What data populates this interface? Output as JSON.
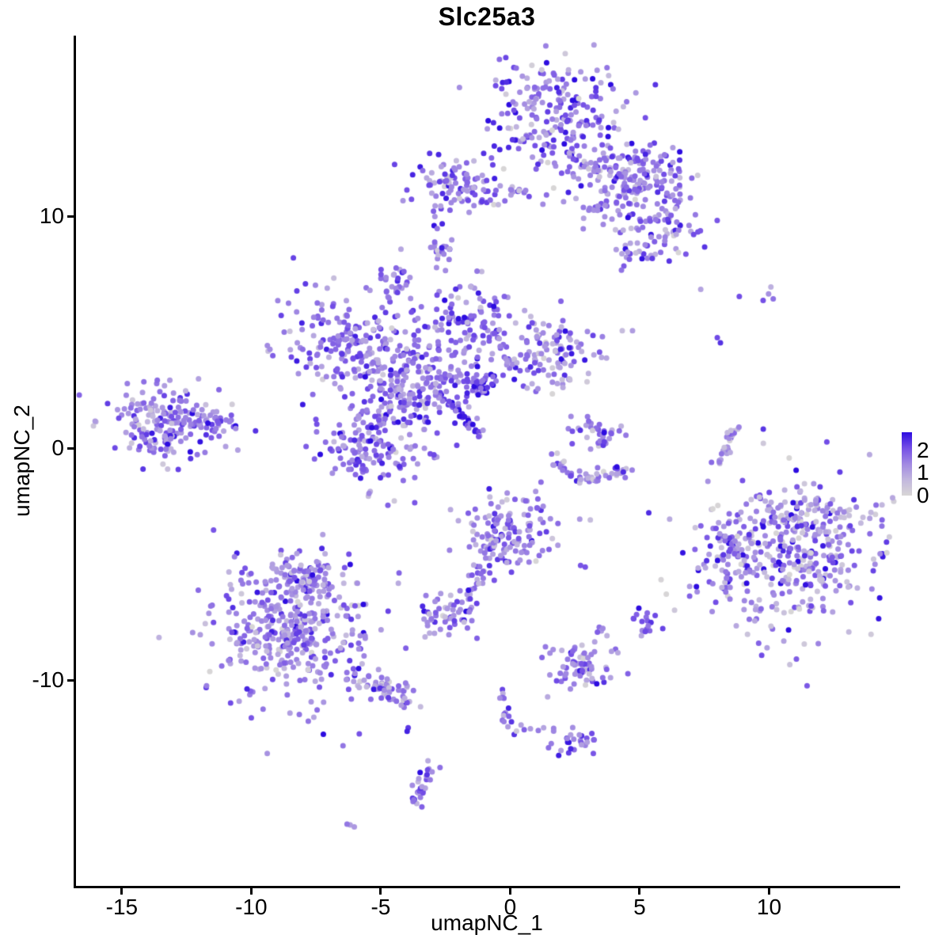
{
  "chart_data": {
    "type": "scatter",
    "title": "Slc25a3",
    "xlabel": "umapNC_1",
    "ylabel": "umapNC_2",
    "xlim": [
      -16.8,
      15.0
    ],
    "ylim": [
      -18.9,
      17.8
    ],
    "x_ticks": [
      -15,
      -10,
      -5,
      0,
      5,
      10
    ],
    "y_ticks": [
      10,
      0,
      -10
    ],
    "grid": false,
    "point_radius_px": 3.5,
    "legend": {
      "position": "right",
      "ticks": [
        2,
        1,
        0
      ],
      "bar_max": 2.8
    },
    "colorscale": {
      "domain": [
        0,
        2.6
      ],
      "stops": [
        "#d8d6d6",
        "#c2b7de",
        "#a189e2",
        "#7550e6",
        "#2d0ce0"
      ]
    },
    "clusters": [
      {
        "name": "top-main",
        "value_mean": 1.5,
        "value_sd": 0.6,
        "components": [
          {
            "type": "gauss",
            "x": 1.68,
            "y": 14.4,
            "sx": 1.37,
            "sy": 1.43,
            "n": 210
          },
          {
            "type": "gauss",
            "x": 3.36,
            "y": 12.35,
            "sx": 1.0,
            "sy": 1.0,
            "n": 70
          },
          {
            "type": "gauss",
            "x": 5.34,
            "y": 11.57,
            "sx": 0.92,
            "sy": 0.75,
            "n": 130
          },
          {
            "type": "gauss",
            "x": 6.26,
            "y": 9.45,
            "sx": 0.67,
            "sy": 0.51,
            "n": 40
          },
          {
            "type": "gauss",
            "x": 5.04,
            "y": 8.6,
            "sx": 0.55,
            "sy": 0.41,
            "n": 30
          },
          {
            "type": "gauss",
            "x": 3.82,
            "y": 10.31,
            "sx": 0.6,
            "sy": 0.7,
            "n": 25
          }
        ]
      },
      {
        "name": "top-left-strip",
        "value_mean": 1.5,
        "value_sd": 0.6,
        "components": [
          {
            "type": "gauss",
            "x": -2.29,
            "y": 11.33,
            "sx": 0.85,
            "sy": 0.55,
            "n": 85
          },
          {
            "type": "gauss",
            "x": -0.15,
            "y": 11.06,
            "sx": 0.8,
            "sy": 0.25,
            "n": 22
          },
          {
            "type": "line",
            "x1": -2.93,
            "y1": 10.2,
            "x2": -2.75,
            "y2": 9.35,
            "jitter": 0.08,
            "n": 5
          }
        ]
      },
      {
        "name": "small-blob-upper-a",
        "value_mean": 1.5,
        "value_sd": 0.5,
        "components": [
          {
            "type": "gauss",
            "x": -2.72,
            "y": 8.53,
            "sx": 0.28,
            "sy": 0.38,
            "n": 20
          }
        ]
      },
      {
        "name": "small-blob-upper-b",
        "value_mean": 1.55,
        "value_sd": 0.5,
        "components": [
          {
            "type": "gauss",
            "x": -4.52,
            "y": 7.24,
            "sx": 0.31,
            "sy": 0.41,
            "n": 26
          }
        ]
      },
      {
        "name": "central-main",
        "value_mean": 1.55,
        "value_sd": 0.55,
        "components": [
          {
            "type": "gauss",
            "x": -6.56,
            "y": 4.85,
            "sx": 1.15,
            "sy": 1.1,
            "n": 150
          },
          {
            "type": "gauss",
            "x": -1.37,
            "y": 5.53,
            "sx": 1.05,
            "sy": 0.85,
            "n": 105
          },
          {
            "type": "gauss",
            "x": 1.53,
            "y": 3.99,
            "sx": 1.15,
            "sy": 0.85,
            "n": 125,
            "value_mean": 1.3
          },
          {
            "type": "gauss",
            "x": -3.82,
            "y": 2.97,
            "sx": 1.2,
            "sy": 1.15,
            "n": 250
          },
          {
            "type": "gauss",
            "x": -1.37,
            "y": 2.73,
            "sx": 0.35,
            "sy": 0.3,
            "n": 45,
            "value_mean": 1.8
          },
          {
            "type": "gauss",
            "x": -5.34,
            "y": 0.24,
            "sx": 1.15,
            "sy": 1.05,
            "n": 160
          },
          {
            "type": "line",
            "x1": -2.44,
            "y1": 2.12,
            "x2": -1.07,
            "y2": 0.48,
            "jitter": 0.08,
            "n": 28,
            "value_mean": 1.9
          }
        ]
      },
      {
        "name": "left-cluster",
        "value_mean": 1.45,
        "value_sd": 0.55,
        "components": [
          {
            "type": "gauss",
            "x": -13.43,
            "y": 1.09,
            "sx": 1.0,
            "sy": 0.85,
            "n": 165
          },
          {
            "type": "gauss",
            "x": -11.69,
            "y": 1.16,
            "sx": 0.55,
            "sy": 0.33,
            "n": 40,
            "value_mean": 1.7
          }
        ]
      },
      {
        "name": "center-right-small",
        "value_mean": 1.3,
        "value_sd": 0.6,
        "components": [
          {
            "type": "gauss",
            "x": 3.36,
            "y": 0.58,
            "sx": 0.45,
            "sy": 0.5,
            "n": 38
          },
          {
            "type": "line",
            "x1": 1.68,
            "y1": -0.44,
            "x2": 2.75,
            "y2": -1.38,
            "jitter": 0.15,
            "n": 20
          },
          {
            "type": "line",
            "x1": 2.75,
            "y1": -1.38,
            "x2": 4.58,
            "y2": -0.95,
            "jitter": 0.15,
            "n": 28
          }
        ]
      },
      {
        "name": "right-arc",
        "value_mean": 1.1,
        "value_sd": 0.4,
        "components": [
          {
            "type": "line",
            "x1": 8.15,
            "y1": -0.61,
            "x2": 8.7,
            "y2": 0.99,
            "jitter": 0.12,
            "n": 26
          }
        ]
      },
      {
        "name": "sparse-upper-right-dots",
        "value_mean": 1.5,
        "value_sd": 0.5,
        "components": [
          {
            "type": "points",
            "pts": [
              [
                7.36,
                6.86
              ],
              [
                8.85,
                6.55
              ],
              [
                9.77,
                6.38
              ],
              [
                10.07,
                6.96
              ],
              [
                9.98,
                6.66
              ],
              [
                10.16,
                6.45
              ],
              [
                8.0,
                4.78
              ],
              [
                8.12,
                4.55
              ]
            ]
          }
        ]
      },
      {
        "name": "right-main",
        "value_mean": 1.3,
        "value_sd": 0.75,
        "components": [
          {
            "type": "gauss",
            "x": 10.84,
            "y": -4.54,
            "sx": 1.7,
            "sy": 1.65,
            "n": 400
          },
          {
            "type": "gauss",
            "x": 8.33,
            "y": -5.05,
            "sx": 0.5,
            "sy": 0.95,
            "n": 55
          },
          {
            "type": "gauss",
            "x": 11.14,
            "y": -2.49,
            "sx": 1.2,
            "sy": 0.5,
            "n": 40
          }
        ]
      },
      {
        "name": "center-lower",
        "value_mean": 1.4,
        "value_sd": 0.55,
        "components": [
          {
            "type": "gauss",
            "x": -0.15,
            "y": -3.58,
            "sx": 0.9,
            "sy": 0.85,
            "n": 150
          },
          {
            "type": "line",
            "x1": -0.82,
            "y1": -4.71,
            "x2": -1.53,
            "y2": -6.52,
            "jitter": 0.12,
            "n": 20
          },
          {
            "type": "points",
            "pts": [
              [
                2.9,
                -5.12
              ],
              [
                2.72,
                -5.05
              ]
            ]
          }
        ]
      },
      {
        "name": "small-blob-mid-lower",
        "value_mean": 1.45,
        "value_sd": 0.5,
        "components": [
          {
            "type": "gauss",
            "x": -2.35,
            "y": -7.1,
            "sx": 0.6,
            "sy": 0.45,
            "n": 55
          }
        ]
      },
      {
        "name": "bottom-left",
        "value_mean": 1.35,
        "value_sd": 0.6,
        "components": [
          {
            "type": "gauss",
            "x": -8.39,
            "y": -7.78,
            "sx": 1.6,
            "sy": 1.5,
            "n": 400
          },
          {
            "type": "gauss",
            "x": -7.78,
            "y": -5.49,
            "sx": 0.75,
            "sy": 0.6,
            "n": 65
          },
          {
            "type": "line",
            "x1": -5.95,
            "y1": -9.83,
            "x2": -3.82,
            "y2": -10.96,
            "jitter": 0.3,
            "n": 65
          }
        ]
      },
      {
        "name": "small-lower-mid-right",
        "value_mean": 1.45,
        "value_sd": 0.55,
        "components": [
          {
            "type": "gauss",
            "x": 2.6,
            "y": -9.3,
            "sx": 0.6,
            "sy": 0.55,
            "n": 70
          }
        ]
      },
      {
        "name": "tiny-blobs-right-lower",
        "value_mean": 1.7,
        "value_sd": 0.45,
        "components": [
          {
            "type": "gauss",
            "x": 5.25,
            "y": -7.44,
            "sx": 0.3,
            "sy": 0.35,
            "n": 18
          },
          {
            "type": "points",
            "pts": [
              [
                3.44,
                -7.71
              ],
              [
                3.52,
                -7.87
              ],
              [
                3.37,
                -7.92
              ],
              [
                3.58,
                -7.76
              ]
            ]
          }
        ]
      },
      {
        "name": "bottom-chain",
        "value_mean": 1.5,
        "value_sd": 0.5,
        "components": [
          {
            "type": "line",
            "x1": -0.4,
            "y1": -10.51,
            "x2": 0.09,
            "y2": -12.32,
            "jitter": 0.1,
            "n": 16
          },
          {
            "type": "line",
            "x1": 0.31,
            "y1": -11.98,
            "x2": 1.68,
            "y2": -12.22,
            "jitter": 0.08,
            "n": 7
          },
          {
            "type": "gauss",
            "x": 2.53,
            "y": -12.8,
            "sx": 0.45,
            "sy": 0.38,
            "n": 26
          }
        ]
      },
      {
        "name": "bottom-curve",
        "value_mean": 1.5,
        "value_sd": 0.5,
        "components": [
          {
            "type": "line",
            "x1": -3.66,
            "y1": -15.39,
            "x2": -3.11,
            "y2": -13.69,
            "jitter": 0.14,
            "n": 28
          },
          {
            "type": "points",
            "pts": [
              [
                -3.94,
                -12.05
              ],
              [
                -3.98,
                -12.2
              ]
            ]
          }
        ]
      },
      {
        "name": "tiny-pair-bottom",
        "value_mean": 1.4,
        "value_sd": 0.3,
        "components": [
          {
            "type": "points",
            "pts": [
              [
                -6.18,
                -16.24
              ],
              [
                -6.02,
                -16.32
              ],
              [
                -6.3,
                -16.2
              ]
            ]
          }
        ]
      }
    ]
  }
}
